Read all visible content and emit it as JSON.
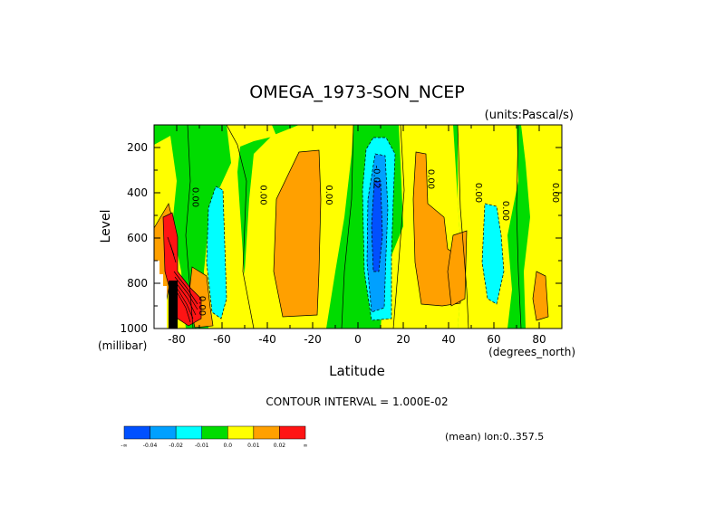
{
  "chart_data": {
    "type": "contour",
    "title": "OMEGA_1973-SON_NCEP",
    "units_label": "(units:Pascal/s)",
    "xlabel": "Latitude",
    "x_units_label": "(degrees_north)",
    "ylabel": "Level",
    "y_units_label": "(millibar)",
    "xlim": [
      -90,
      90
    ],
    "ylim": [
      1000,
      100
    ],
    "x_ticks": [
      -80,
      -60,
      -40,
      -20,
      0,
      20,
      40,
      60,
      80
    ],
    "x_tick_labels": [
      "-80",
      "-60",
      "-40",
      "-20",
      "0",
      "20",
      "40",
      "60",
      "80"
    ],
    "y_ticks": [
      200,
      400,
      600,
      800,
      1000
    ],
    "y_tick_labels": [
      "200",
      "400",
      "600",
      "800",
      "1000"
    ],
    "contour_interval_label": "CONTOUR INTERVAL = 1.000E-02",
    "mean_label": "(mean) lon:0..357.5",
    "contour_labels": [
      {
        "text": "0.00",
        "lat": -73,
        "level": 420
      },
      {
        "text": "0.00",
        "lat": -43,
        "level": 410
      },
      {
        "text": "0.00",
        "lat": -14,
        "level": 410
      },
      {
        "text": "-0.02",
        "lat": 7,
        "level": 330
      },
      {
        "text": "0.00",
        "lat": 31,
        "level": 340
      },
      {
        "text": "0.00",
        "lat": 52,
        "level": 400
      },
      {
        "text": "0.00",
        "lat": 64,
        "level": 480
      },
      {
        "text": "0.00",
        "lat": 86,
        "level": 400
      },
      {
        "text": "0.00",
        "lat": -70,
        "level": 900
      }
    ],
    "colorbar": {
      "colors": [
        "#0050ff",
        "#00a0ff",
        "#00ffff",
        "#00dc00",
        "#ffff00",
        "#ffa000",
        "#ff1414"
      ],
      "labels": [
        "-∞",
        "-0.04",
        "-0.02",
        "-0.01",
        "0.0",
        "0.01",
        "0.02",
        "∞"
      ]
    }
  }
}
